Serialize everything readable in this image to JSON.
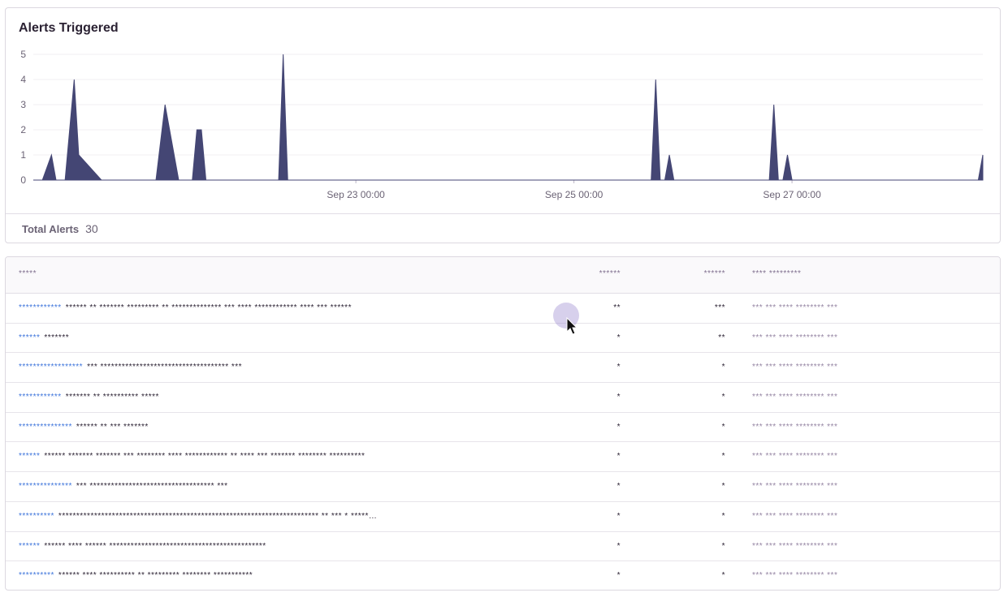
{
  "chart": {
    "title": "Alerts Triggered",
    "footer_label": "Total Alerts",
    "footer_value": "30"
  },
  "chart_data": {
    "type": "area",
    "title": "Alerts Triggered",
    "xlabel": "",
    "ylabel": "",
    "ylim": [
      0,
      5
    ],
    "yticks": [
      "0",
      "1",
      "2",
      "3",
      "4",
      "5"
    ],
    "xticks": [
      "Sep 23 00:00",
      "Sep 25 00:00",
      "Sep 27 00:00"
    ],
    "x_domain_hours": [
      -47,
      162
    ],
    "grid": true,
    "color": "#444674",
    "series": [
      {
        "x": [
          -47,
          -45,
          -43,
          -42,
          -41,
          -40,
          -38,
          -37,
          -32,
          -21,
          -20,
          -18,
          -17,
          -15,
          -13,
          -12,
          -11,
          -10,
          -9,
          -8,
          6,
          7,
          8,
          9,
          10,
          11,
          88,
          89,
          90,
          91,
          92,
          93,
          94,
          114,
          115,
          116,
          117,
          118,
          119,
          120,
          150,
          151,
          152,
          160,
          161,
          162
        ],
        "y": [
          0,
          0,
          1,
          0,
          0,
          0,
          4,
          1,
          0,
          0,
          0,
          3,
          2,
          0,
          0,
          0,
          2,
          2,
          0,
          0,
          0,
          0,
          5,
          0,
          0,
          0,
          0,
          0,
          4,
          0,
          0,
          1,
          0,
          0,
          0,
          3,
          0,
          0,
          1,
          0,
          0,
          0,
          0,
          0,
          0,
          1
        ]
      }
    ]
  },
  "table": {
    "headers": {
      "issue": "*****",
      "events": "******",
      "users": "******",
      "last_seen": "**** *********"
    },
    "rows": [
      {
        "link": "************",
        "rest": "****** ** ******* ********* ** ************** *** **** ************ **** *** ******",
        "events": "**",
        "users": "***",
        "seen": "*** *** **** ******** ***"
      },
      {
        "link": "******",
        "rest": "*******",
        "events": "*",
        "users": "**",
        "seen": "*** *** **** ******** ***"
      },
      {
        "link": "******************",
        "rest": "*** ************************************ ***",
        "events": "*",
        "users": "*",
        "seen": "*** *** **** ******** ***"
      },
      {
        "link": "************",
        "rest": "******* ** ********** *****",
        "events": "*",
        "users": "*",
        "seen": "*** *** **** ******** ***"
      },
      {
        "link": "***************",
        "rest": "****** ** *** *******",
        "events": "*",
        "users": "*",
        "seen": "*** *** **** ******** ***"
      },
      {
        "link": "******",
        "rest": "****** ******* ******* *** ******** **** ************ ** **** *** ******* ******** **********",
        "events": "*",
        "users": "*",
        "seen": "*** *** **** ******** ***"
      },
      {
        "link": "***************",
        "rest": "*** *********************************** ***",
        "events": "*",
        "users": "*",
        "seen": "*** *** **** ******** ***"
      },
      {
        "link": "**********",
        "rest": "************************************************************************* ** *** * *****…",
        "events": "*",
        "users": "*",
        "seen": "*** *** **** ******** ***"
      },
      {
        "link": "******",
        "rest": "****** **** ****** ********************************************",
        "events": "*",
        "users": "*",
        "seen": "*** *** **** ******** ***"
      },
      {
        "link": "**********",
        "rest": "****** **** ********** ** ********* ******** ***********",
        "events": "*",
        "users": "*",
        "seen": "*** *** **** ******** ***"
      }
    ]
  }
}
